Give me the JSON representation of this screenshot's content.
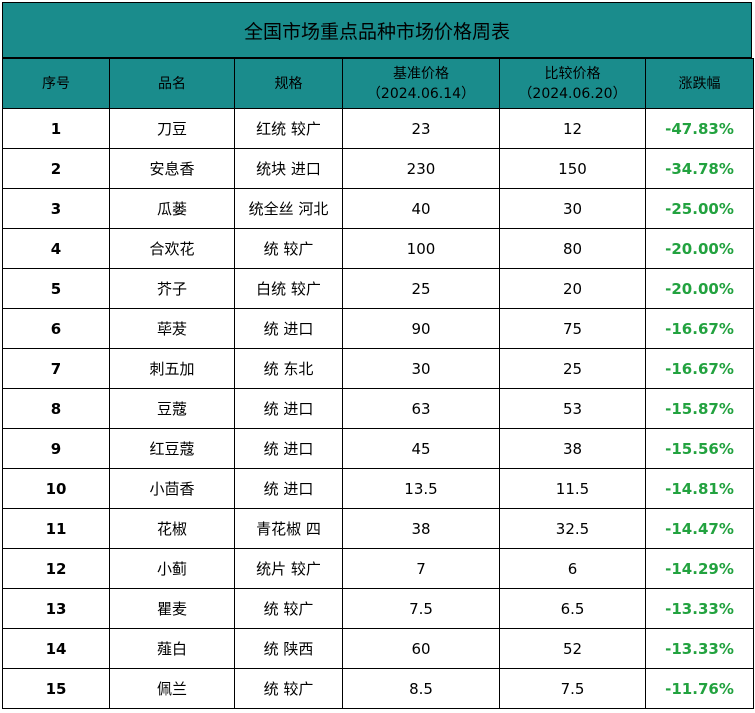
{
  "title": "全国市场重点品种市场价格周表",
  "headers": {
    "seq": "序号",
    "name": "品名",
    "spec": "规格",
    "base_price": "基准价格",
    "base_date": "（2024.06.14）",
    "compare_price": "比较价格",
    "compare_date": "（2024.06.20）",
    "change": "涨跌幅"
  },
  "rows": [
    {
      "seq": "1",
      "name": "刀豆",
      "spec": "红统 较广",
      "base": "23",
      "compare": "12",
      "change": "-47.83%"
    },
    {
      "seq": "2",
      "name": "安息香",
      "spec": "统块 进口",
      "base": "230",
      "compare": "150",
      "change": "-34.78%"
    },
    {
      "seq": "3",
      "name": "瓜蒌",
      "spec": "统全丝 河北",
      "base": "40",
      "compare": "30",
      "change": "-25.00%"
    },
    {
      "seq": "4",
      "name": "合欢花",
      "spec": "统 较广",
      "base": "100",
      "compare": "80",
      "change": "-20.00%"
    },
    {
      "seq": "5",
      "name": "芥子",
      "spec": "白统 较广",
      "base": "25",
      "compare": "20",
      "change": "-20.00%"
    },
    {
      "seq": "6",
      "name": "荜茇",
      "spec": "统 进口",
      "base": "90",
      "compare": "75",
      "change": "-16.67%"
    },
    {
      "seq": "7",
      "name": "刺五加",
      "spec": "统 东北",
      "base": "30",
      "compare": "25",
      "change": "-16.67%"
    },
    {
      "seq": "8",
      "name": "豆蔻",
      "spec": "统 进口",
      "base": "63",
      "compare": "53",
      "change": "-15.87%"
    },
    {
      "seq": "9",
      "name": "红豆蔻",
      "spec": "统 进口",
      "base": "45",
      "compare": "38",
      "change": "-15.56%"
    },
    {
      "seq": "10",
      "name": "小茴香",
      "spec": "统 进口",
      "base": "13.5",
      "compare": "11.5",
      "change": "-14.81%"
    },
    {
      "seq": "11",
      "name": "花椒",
      "spec": "青花椒 四",
      "base": "38",
      "compare": "32.5",
      "change": "-14.47%"
    },
    {
      "seq": "12",
      "name": "小蓟",
      "spec": "统片 较广",
      "base": "7",
      "compare": "6",
      "change": "-14.29%"
    },
    {
      "seq": "13",
      "name": "瞿麦",
      "spec": "统 较广",
      "base": "7.5",
      "compare": "6.5",
      "change": "-13.33%"
    },
    {
      "seq": "14",
      "name": "薤白",
      "spec": "统 陕西",
      "base": "60",
      "compare": "52",
      "change": "-13.33%"
    },
    {
      "seq": "15",
      "name": "佩兰",
      "spec": "统 较广",
      "base": "8.5",
      "compare": "7.5",
      "change": "-11.76%"
    }
  ],
  "colors": {
    "header_bg": "#1a8c8c",
    "change_text": "#22a23f"
  }
}
